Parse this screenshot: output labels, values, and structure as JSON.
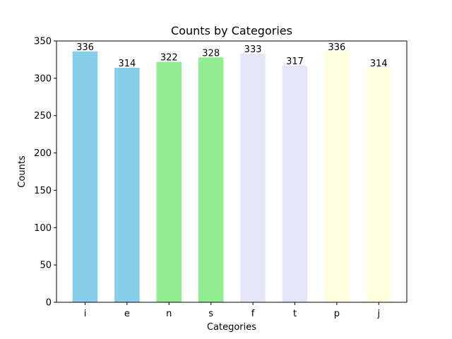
{
  "chart_data": {
    "type": "bar",
    "title": "Counts by Categories",
    "xlabel": "Categories",
    "ylabel": "Counts",
    "categories": [
      "i",
      "e",
      "n",
      "s",
      "f",
      "t",
      "p",
      "j"
    ],
    "values": [
      336,
      314,
      322,
      328,
      333,
      317,
      336,
      314
    ],
    "colors": [
      "#87CEEB",
      "#87CEEB",
      "#90EE90",
      "#90EE90",
      "#E6E6FA",
      "#E6E6FA",
      "#FFFFE0",
      "#FFFFE0"
    ],
    "ylim": [
      0,
      350
    ],
    "yticks": [
      0,
      50,
      100,
      150,
      200,
      250,
      300,
      350
    ],
    "grid": false,
    "legend": "none"
  }
}
